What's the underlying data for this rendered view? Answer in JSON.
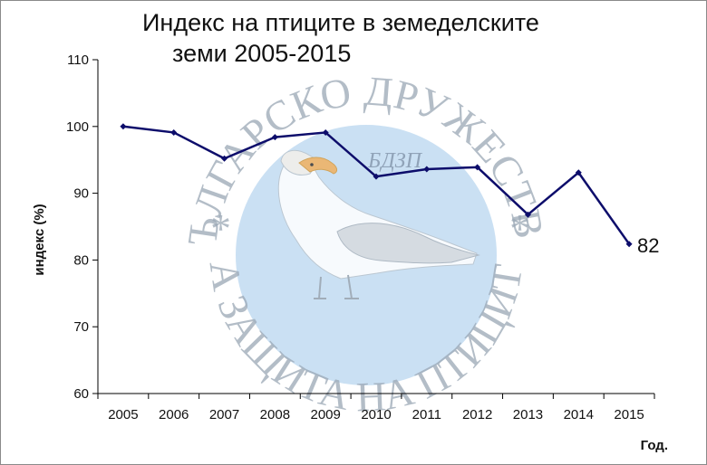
{
  "chart_data": {
    "type": "line",
    "title_lines": [
      "Индекс на птиците в земеделските",
      "земи 2005-2015"
    ],
    "xlabel": "Год.",
    "ylabel": "индекс (%)",
    "categories": [
      "2005",
      "2006",
      "2007",
      "2008",
      "2009",
      "2010",
      "2011",
      "2012",
      "2013",
      "2014",
      "2015"
    ],
    "series": [
      {
        "values": [
          100,
          99.1,
          95.2,
          98.4,
          99.1,
          92.5,
          93.6,
          93.9,
          86.8,
          93.1,
          82.4
        ]
      }
    ],
    "end_label": "82",
    "ylim": [
      60,
      110
    ],
    "yticks": [
      60,
      70,
      80,
      90,
      100,
      110
    ],
    "grid": false,
    "legend": "none",
    "colors": {
      "line": "#0d0d6b",
      "watermark": "#b8d6ef"
    }
  },
  "watermark": {
    "top_text": "БЪЛГАРСКО ДРУЖЕСТВО",
    "bottom_text": "ЗА ЗАЩИТА НА ПТИЦИТЕ",
    "mark": "БДЗП",
    "star": "*"
  }
}
